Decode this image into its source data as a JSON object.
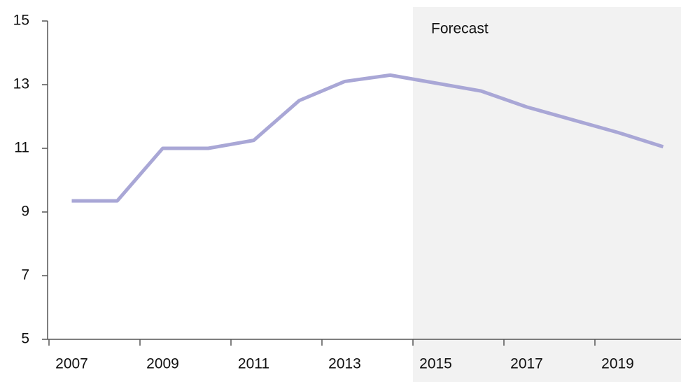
{
  "chart_data": {
    "type": "line",
    "categories": [
      "2007",
      null,
      "2009",
      null,
      "2011",
      null,
      "2013",
      null,
      "2015",
      null,
      "2017",
      null,
      "2019",
      null
    ],
    "series": [
      {
        "color": "#a9a7d6",
        "values": [
          9.35,
          9.35,
          11.0,
          11.0,
          11.25,
          12.5,
          13.1,
          13.3,
          13.05,
          12.8,
          12.3,
          11.9,
          11.5,
          11.05
        ]
      }
    ],
    "ylim": [
      5,
      15
    ],
    "yticks": [
      5,
      7,
      9,
      11,
      13,
      15
    ],
    "annotations": [
      {
        "text": "Forecast"
      }
    ]
  }
}
